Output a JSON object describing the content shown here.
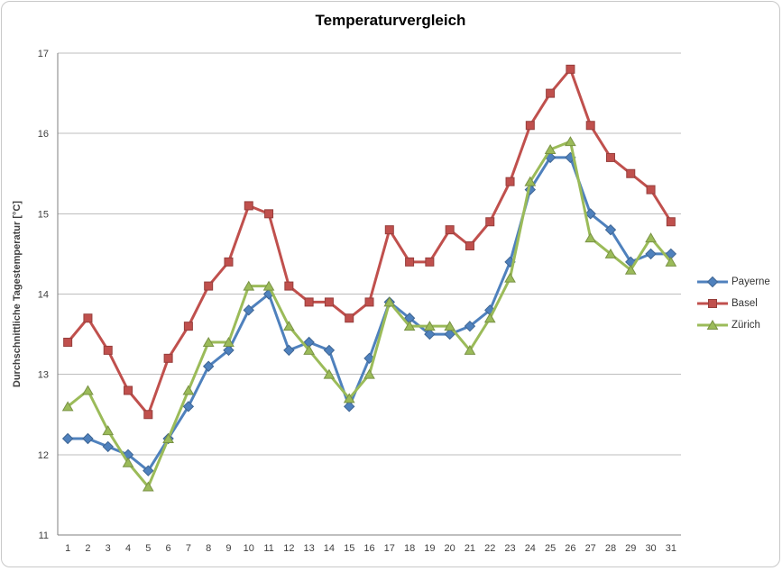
{
  "title": "Temperaturvergleich",
  "chart_data": {
    "type": "line",
    "x": [
      1,
      2,
      3,
      4,
      5,
      6,
      7,
      8,
      9,
      10,
      11,
      12,
      13,
      14,
      15,
      16,
      17,
      18,
      19,
      20,
      21,
      22,
      23,
      24,
      25,
      26,
      27,
      28,
      29,
      30,
      31
    ],
    "xlabel": "",
    "ylabel": "Durchschnittliche  Tagestemperatur [°C]",
    "ylim": [
      11,
      17
    ],
    "yticks": [
      11,
      12,
      13,
      14,
      15,
      16,
      17
    ],
    "grid": true,
    "legend_position": "right",
    "series": [
      {
        "name": "Payerne",
        "color": "#4F81BD",
        "marker": "diamond",
        "values": [
          12.2,
          12.2,
          12.1,
          12.0,
          11.8,
          12.2,
          12.6,
          13.1,
          13.3,
          13.8,
          14.0,
          13.3,
          13.4,
          13.3,
          12.6,
          13.2,
          13.9,
          13.7,
          13.5,
          13.5,
          13.6,
          13.8,
          14.4,
          15.3,
          15.7,
          15.7,
          15.0,
          14.8,
          14.4,
          14.5,
          14.5
        ]
      },
      {
        "name": "Basel",
        "color": "#C0504D",
        "marker": "square",
        "values": [
          13.4,
          13.7,
          13.3,
          12.8,
          12.5,
          13.2,
          13.6,
          14.1,
          14.4,
          15.1,
          15.0,
          14.1,
          13.9,
          13.9,
          13.7,
          13.9,
          14.8,
          14.4,
          14.4,
          14.8,
          14.6,
          14.9,
          15.4,
          16.1,
          16.5,
          16.8,
          16.1,
          15.7,
          15.5,
          15.3,
          14.9
        ]
      },
      {
        "name": "Zürich",
        "color": "#9BBB59",
        "marker": "triangle",
        "values": [
          12.6,
          12.8,
          12.3,
          11.9,
          11.6,
          12.2,
          12.8,
          13.4,
          13.4,
          14.1,
          14.1,
          13.6,
          13.3,
          13.0,
          12.7,
          13.0,
          13.9,
          13.6,
          13.6,
          13.6,
          13.3,
          13.7,
          14.2,
          15.4,
          15.8,
          15.9,
          14.7,
          14.5,
          14.3,
          14.7,
          14.4
        ]
      }
    ],
    "colors": {
      "grid": "#bdbdbd",
      "axis": "#7f7f7f",
      "tick_text": "#3f3f3f"
    }
  }
}
